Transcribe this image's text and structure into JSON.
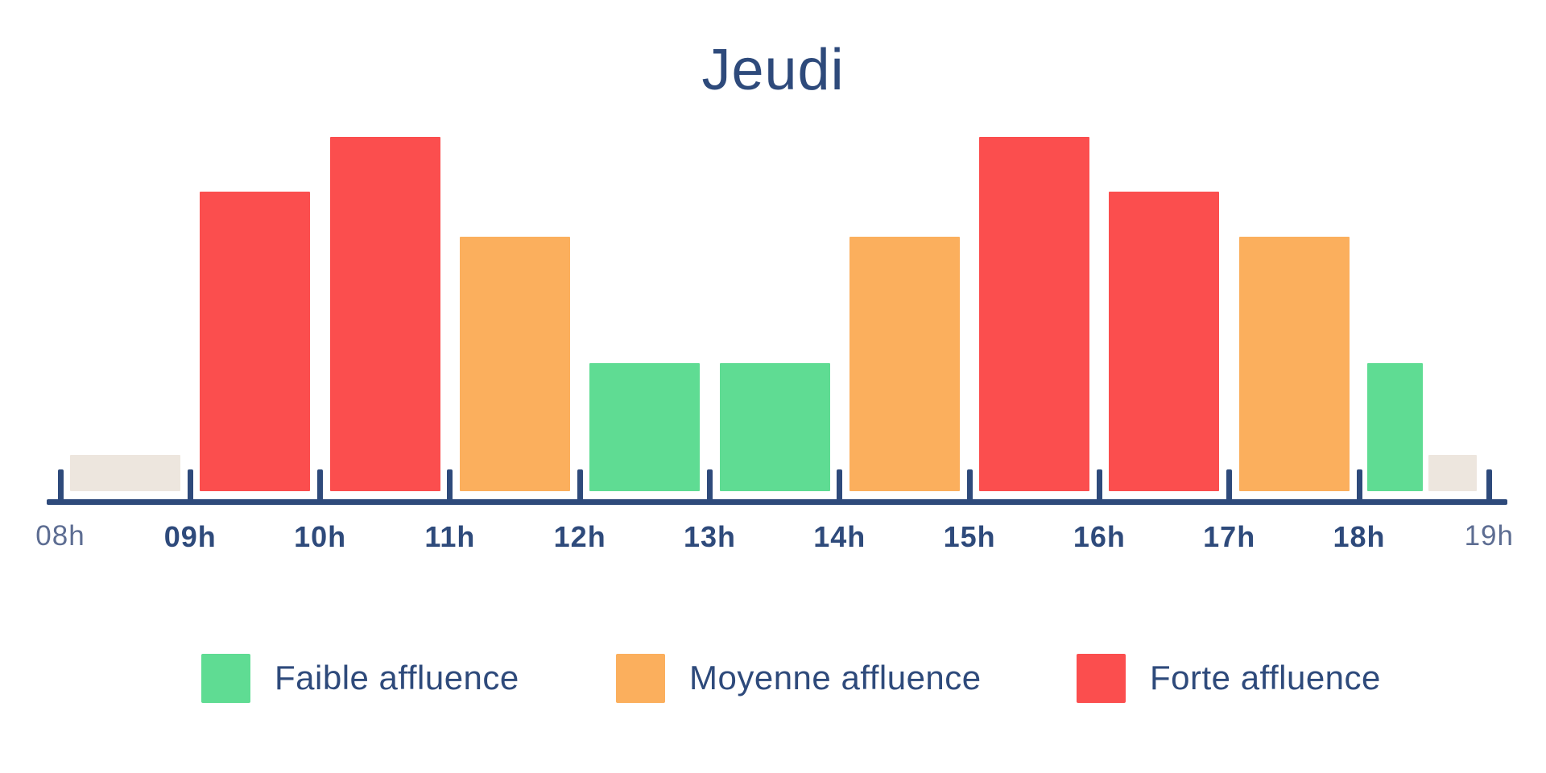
{
  "chart_data": {
    "type": "bar",
    "title": "Jeudi",
    "x_axis": {
      "ticks": [
        {
          "label": "08h",
          "muted": true
        },
        {
          "label": "09h",
          "muted": false
        },
        {
          "label": "10h",
          "muted": false
        },
        {
          "label": "11h",
          "muted": false
        },
        {
          "label": "12h",
          "muted": false
        },
        {
          "label": "13h",
          "muted": false
        },
        {
          "label": "14h",
          "muted": false
        },
        {
          "label": "15h",
          "muted": false
        },
        {
          "label": "16h",
          "muted": false
        },
        {
          "label": "17h",
          "muted": false
        },
        {
          "label": "18h",
          "muted": false
        },
        {
          "label": "19h",
          "muted": true
        }
      ]
    },
    "bars": [
      {
        "slot": 0,
        "from": "08h",
        "to": "09h",
        "level": "neutral",
        "color_key": "neutral",
        "height_frac": 0.102
      },
      {
        "slot": 1,
        "from": "09h",
        "to": "10h",
        "level": "forte",
        "color_key": "forte",
        "height_frac": 0.845
      },
      {
        "slot": 2,
        "from": "10h",
        "to": "11h",
        "level": "forte",
        "color_key": "forte",
        "height_frac": 1.0
      },
      {
        "slot": 3,
        "from": "11h",
        "to": "12h",
        "level": "moyenne",
        "color_key": "moyenne",
        "height_frac": 0.718
      },
      {
        "slot": 4,
        "from": "12h",
        "to": "13h",
        "level": "faible",
        "color_key": "faible",
        "height_frac": 0.361
      },
      {
        "slot": 5,
        "from": "13h",
        "to": "14h",
        "level": "faible",
        "color_key": "faible",
        "height_frac": 0.361
      },
      {
        "slot": 6,
        "from": "14h",
        "to": "15h",
        "level": "moyenne",
        "color_key": "moyenne",
        "height_frac": 0.718
      },
      {
        "slot": 7,
        "from": "15h",
        "to": "16h",
        "level": "forte",
        "color_key": "forte",
        "height_frac": 1.0
      },
      {
        "slot": 8,
        "from": "16h",
        "to": "17h",
        "level": "forte",
        "color_key": "forte",
        "height_frac": 0.845
      },
      {
        "slot": 9,
        "from": "17h",
        "to": "18h",
        "level": "moyenne",
        "color_key": "moyenne",
        "height_frac": 0.718
      },
      {
        "slot": 10,
        "from": "18h",
        "to": "18h30",
        "level": "faible",
        "color_key": "faible",
        "height_frac": 0.361,
        "left_frac": 0.062,
        "width_frac": 0.43
      },
      {
        "slot": 10,
        "from": "18h30",
        "to": "19h",
        "level": "neutral",
        "color_key": "neutral",
        "height_frac": 0.102,
        "left_frac": 0.535,
        "width_frac": 0.372
      }
    ],
    "colors": {
      "faible": "#5FDC93",
      "moyenne": "#FBAF5D",
      "forte": "#FB4E4E",
      "neutral": "#EDE6DE",
      "axis": "#2E4A7B",
      "title": "#2E4A7B",
      "muted_label": "#5D6D92"
    },
    "legend": [
      {
        "key": "faible",
        "label": "Faible affluence"
      },
      {
        "key": "moyenne",
        "label": "Moyenne affluence"
      },
      {
        "key": "forte",
        "label": "Forte affluence"
      }
    ]
  }
}
